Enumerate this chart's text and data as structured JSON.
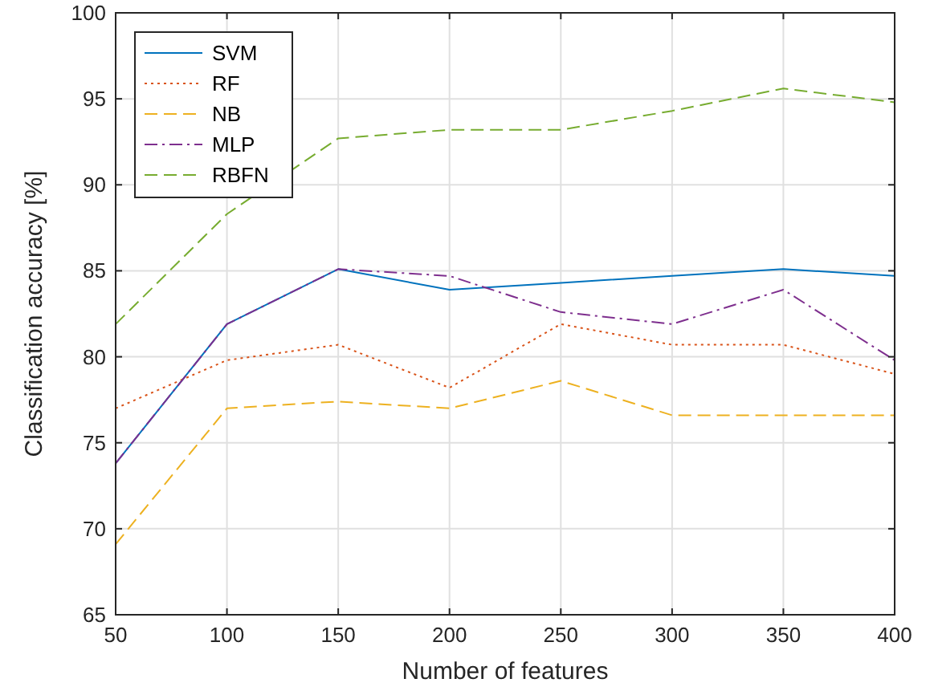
{
  "chart_data": {
    "type": "line",
    "xlabel": "Number of features",
    "ylabel": "Classification accuracy [%]",
    "x": [
      50,
      100,
      150,
      200,
      250,
      300,
      350,
      400
    ],
    "xlim": [
      50,
      400
    ],
    "xticks": [
      50,
      100,
      150,
      200,
      250,
      300,
      350,
      400
    ],
    "ylim": [
      65,
      100
    ],
    "yticks": [
      65,
      70,
      75,
      80,
      85,
      90,
      95,
      100
    ],
    "grid": true,
    "legend": "top left",
    "series": [
      {
        "name": "SVM",
        "color": "#0072bd",
        "line_style": "solid",
        "values": [
          73.8,
          81.9,
          85.1,
          83.9,
          84.3,
          84.7,
          85.1,
          84.7
        ]
      },
      {
        "name": "RF",
        "color": "#d95319",
        "line_style": "dotted",
        "values": [
          77.0,
          79.8,
          80.7,
          78.2,
          81.9,
          80.7,
          80.7,
          79.0
        ]
      },
      {
        "name": "NB",
        "color": "#edb120",
        "line_style": "dashed",
        "values": [
          69.1,
          77.0,
          77.4,
          77.0,
          78.6,
          76.6,
          76.6,
          76.6
        ]
      },
      {
        "name": "MLP",
        "color": "#7e2f8e",
        "line_style": "dashdot",
        "values": [
          73.8,
          81.9,
          85.1,
          84.7,
          82.6,
          81.9,
          83.9,
          79.8
        ]
      },
      {
        "name": "RBFN",
        "color": "#77ac30",
        "line_style": "dashed",
        "values": [
          81.9,
          88.3,
          92.7,
          93.2,
          93.2,
          94.3,
          95.6,
          94.8
        ]
      }
    ]
  }
}
